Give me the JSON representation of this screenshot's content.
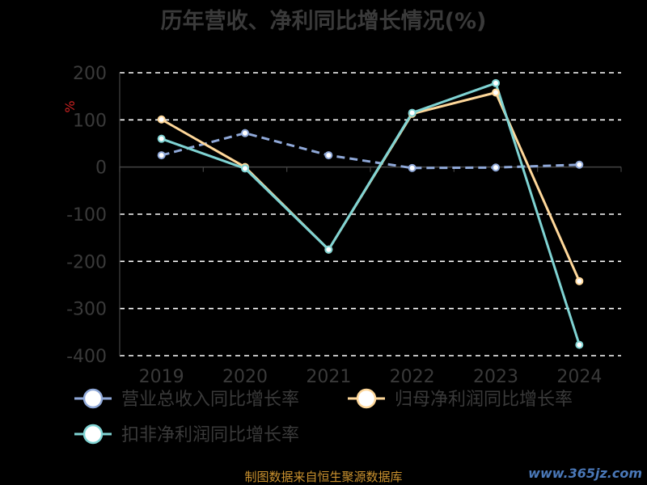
{
  "chart_data": {
    "type": "line",
    "title": "历年营收、净利同比增长情况(%)",
    "ylabel": "%",
    "categories": [
      "2019",
      "2020",
      "2021",
      "2022",
      "2023",
      "2024"
    ],
    "ylim": [
      -400,
      200
    ],
    "yticks": [
      "200",
      "100",
      "0",
      "-100",
      "-200",
      "-300",
      "-400"
    ],
    "grid": true,
    "legend_position": "bottom",
    "series": [
      {
        "name": "营业总收入同比增长率",
        "color": "#8fa8d8",
        "dashed": true,
        "values": [
          25,
          72,
          25,
          -2,
          -1,
          5
        ]
      },
      {
        "name": "归母净利润同比增长率",
        "color": "#ffd89a",
        "dashed": false,
        "values": [
          101,
          0,
          -175,
          113,
          158,
          -242
        ]
      },
      {
        "name": "扣非净利润同比增长率",
        "color": "#7fd3d3",
        "dashed": false,
        "values": [
          60,
          -3,
          -175,
          115,
          178,
          -377
        ]
      }
    ]
  },
  "source_note": "制图数据来自恒生聚源数据库",
  "watermark": "www.365jz.com"
}
